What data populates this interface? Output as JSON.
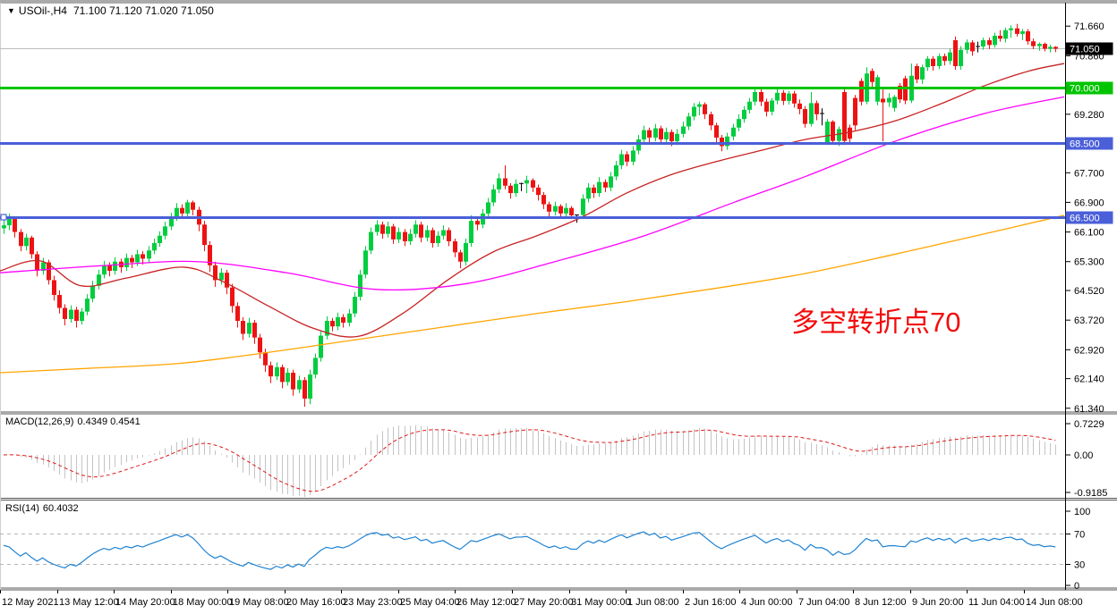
{
  "window": {
    "collapse_icon": "▼",
    "title_symbol": "USOil-,H4",
    "ohlc_values": "71.100 71.120 71.020 71.050"
  },
  "annotation": {
    "text": "多空转折点70",
    "color": "#F20C0C"
  },
  "price_axis": {
    "current_label": {
      "text": "71.050",
      "bg": "#000000",
      "fg": "#FFFFFF"
    },
    "ticks": [
      71.66,
      70.86,
      69.28,
      67.7,
      66.9,
      66.1,
      65.3,
      64.52,
      63.72,
      62.92,
      62.14,
      61.34
    ]
  },
  "hlines": [
    {
      "price": 70.0,
      "label": "70.000",
      "color": "#00C400",
      "width": 3,
      "handle": false
    },
    {
      "price": 68.5,
      "label": "68.500",
      "color": "#4A5FD8",
      "width": 3,
      "handle": false
    },
    {
      "price": 66.5,
      "label": "66.500",
      "color": "#4A5FD8",
      "width": 3,
      "handle": true
    }
  ],
  "current_price_line": {
    "price": 71.05,
    "color": "#BDBDBD"
  },
  "chart_data": {
    "type": "candlestick",
    "symbol": "USOil",
    "timeframe": "H4",
    "bull_color": "#00CD3F",
    "bear_color": "#EE1212",
    "doji_color": "#000000",
    "ylim": [
      61.17,
      72.4
    ],
    "grid": false,
    "ohlc": [
      [
        66.2,
        66.5,
        66.05,
        66.28
      ],
      [
        66.28,
        66.6,
        66.15,
        66.45
      ],
      [
        66.45,
        66.52,
        65.95,
        66.1
      ],
      [
        66.1,
        66.18,
        65.58,
        65.72
      ],
      [
        65.72,
        66.05,
        65.6,
        65.95
      ],
      [
        65.95,
        66.0,
        65.38,
        65.5
      ],
      [
        65.5,
        65.58,
        64.9,
        65.05
      ],
      [
        65.05,
        65.4,
        64.95,
        65.28
      ],
      [
        65.28,
        65.35,
        64.68,
        64.8
      ],
      [
        64.8,
        64.92,
        64.25,
        64.4
      ],
      [
        64.4,
        64.52,
        63.9,
        64.05
      ],
      [
        64.05,
        64.15,
        63.58,
        63.75
      ],
      [
        63.75,
        64.12,
        63.65,
        64.0
      ],
      [
        64.0,
        64.08,
        63.52,
        63.7
      ],
      [
        63.7,
        64.05,
        63.6,
        63.95
      ],
      [
        63.95,
        64.42,
        63.85,
        64.3
      ],
      [
        64.3,
        64.78,
        64.2,
        64.65
      ],
      [
        64.65,
        65.08,
        64.55,
        64.95
      ],
      [
        64.95,
        65.32,
        64.85,
        65.2
      ],
      [
        65.2,
        65.28,
        64.9,
        65.05
      ],
      [
        65.05,
        65.42,
        64.95,
        65.3
      ],
      [
        65.3,
        65.38,
        65.0,
        65.15
      ],
      [
        65.15,
        65.52,
        65.05,
        65.4
      ],
      [
        65.4,
        65.48,
        65.12,
        65.28
      ],
      [
        65.28,
        65.62,
        65.18,
        65.5
      ],
      [
        65.5,
        65.58,
        65.22,
        65.38
      ],
      [
        65.38,
        65.72,
        65.28,
        65.6
      ],
      [
        65.6,
        65.92,
        65.5,
        65.8
      ],
      [
        65.8,
        66.12,
        65.7,
        66.0
      ],
      [
        66.0,
        66.38,
        65.9,
        66.25
      ],
      [
        66.25,
        66.62,
        66.15,
        66.5
      ],
      [
        66.5,
        66.88,
        66.4,
        66.75
      ],
      [
        66.75,
        66.85,
        66.45,
        66.6
      ],
      [
        66.6,
        66.97,
        66.5,
        66.9
      ],
      [
        66.9,
        66.95,
        66.55,
        66.7
      ],
      [
        66.7,
        66.78,
        66.12,
        66.3
      ],
      [
        66.3,
        66.4,
        65.58,
        65.75
      ],
      [
        65.75,
        65.85,
        65.02,
        65.2
      ],
      [
        65.2,
        65.3,
        64.62,
        64.8
      ],
      [
        64.8,
        65.12,
        64.68,
        65.0
      ],
      [
        65.0,
        65.08,
        64.42,
        64.6
      ],
      [
        64.6,
        64.7,
        63.92,
        64.1
      ],
      [
        64.1,
        64.2,
        63.52,
        63.7
      ],
      [
        63.7,
        63.8,
        63.18,
        63.35
      ],
      [
        63.35,
        63.78,
        63.25,
        63.65
      ],
      [
        63.65,
        63.72,
        63.08,
        63.25
      ],
      [
        63.25,
        63.35,
        62.68,
        62.85
      ],
      [
        62.85,
        62.95,
        62.32,
        62.5
      ],
      [
        62.5,
        62.6,
        62.02,
        62.2
      ],
      [
        62.2,
        62.58,
        62.1,
        62.45
      ],
      [
        62.45,
        62.52,
        61.88,
        62.05
      ],
      [
        62.05,
        62.42,
        61.95,
        62.3
      ],
      [
        62.3,
        62.38,
        61.68,
        61.85
      ],
      [
        61.85,
        62.22,
        61.75,
        62.1
      ],
      [
        62.1,
        62.18,
        61.38,
        61.6
      ],
      [
        61.6,
        62.38,
        61.45,
        62.25
      ],
      [
        62.25,
        62.82,
        62.15,
        62.7
      ],
      [
        62.7,
        63.42,
        62.6,
        63.3
      ],
      [
        63.3,
        63.82,
        63.2,
        63.7
      ],
      [
        63.7,
        63.78,
        63.42,
        63.55
      ],
      [
        63.55,
        63.92,
        63.45,
        63.8
      ],
      [
        63.8,
        63.88,
        63.52,
        63.65
      ],
      [
        63.65,
        64.02,
        63.55,
        63.9
      ],
      [
        63.9,
        64.48,
        63.8,
        64.35
      ],
      [
        64.35,
        65.08,
        64.25,
        64.95
      ],
      [
        64.95,
        65.72,
        64.85,
        65.6
      ],
      [
        65.6,
        66.22,
        65.5,
        66.1
      ],
      [
        66.1,
        66.42,
        66.0,
        66.3
      ],
      [
        66.3,
        66.38,
        65.92,
        66.05
      ],
      [
        66.05,
        66.38,
        65.95,
        66.25
      ],
      [
        66.25,
        66.32,
        65.78,
        65.9
      ],
      [
        65.9,
        66.22,
        65.8,
        66.1
      ],
      [
        66.1,
        66.18,
        65.72,
        65.85
      ],
      [
        65.85,
        66.18,
        65.75,
        66.05
      ],
      [
        66.05,
        66.42,
        65.95,
        66.3
      ],
      [
        66.3,
        66.38,
        65.82,
        65.95
      ],
      [
        65.95,
        66.28,
        65.85,
        66.15
      ],
      [
        66.15,
        66.22,
        65.68,
        65.8
      ],
      [
        65.8,
        66.12,
        65.7,
        66.0
      ],
      [
        66.0,
        66.28,
        65.9,
        66.15
      ],
      [
        66.15,
        66.22,
        65.72,
        65.85
      ],
      [
        65.85,
        65.92,
        65.42,
        65.55
      ],
      [
        65.55,
        65.62,
        65.12,
        65.3
      ],
      [
        65.3,
        65.92,
        65.2,
        65.8
      ],
      [
        65.8,
        66.55,
        65.7,
        66.4
      ],
      [
        66.4,
        66.48,
        66.15,
        66.3
      ],
      [
        66.3,
        66.72,
        66.2,
        66.6
      ],
      [
        66.6,
        67.02,
        66.5,
        66.9
      ],
      [
        66.9,
        67.38,
        66.8,
        67.25
      ],
      [
        67.25,
        67.68,
        67.15,
        67.55
      ],
      [
        67.55,
        67.9,
        67.25,
        67.35
      ],
      [
        67.35,
        67.42,
        67.0,
        67.15
      ],
      [
        67.15,
        67.52,
        67.05,
        67.4
      ],
      [
        67.4,
        67.43,
        67.2,
        67.41
      ],
      [
        67.41,
        67.62,
        67.15,
        67.5
      ],
      [
        67.5,
        67.55,
        67.18,
        67.3
      ],
      [
        67.3,
        67.38,
        66.95,
        67.1
      ],
      [
        67.1,
        67.18,
        66.72,
        66.85
      ],
      [
        66.85,
        66.92,
        66.52,
        66.65
      ],
      [
        66.65,
        66.92,
        66.55,
        66.8
      ],
      [
        66.8,
        66.85,
        66.48,
        66.6
      ],
      [
        66.6,
        66.88,
        66.52,
        66.75
      ],
      [
        66.75,
        66.8,
        66.45,
        66.55
      ],
      [
        66.55,
        66.57,
        66.35,
        66.56
      ],
      [
        66.56,
        67.12,
        66.5,
        67.0
      ],
      [
        67.0,
        67.42,
        66.9,
        67.3
      ],
      [
        67.3,
        67.38,
        67.02,
        67.15
      ],
      [
        67.15,
        67.58,
        67.05,
        67.45
      ],
      [
        67.45,
        67.52,
        67.18,
        67.3
      ],
      [
        67.3,
        67.72,
        67.2,
        67.6
      ],
      [
        67.6,
        68.02,
        67.5,
        67.9
      ],
      [
        67.9,
        68.32,
        67.8,
        68.2
      ],
      [
        68.2,
        68.28,
        67.88,
        68.0
      ],
      [
        68.0,
        68.42,
        67.9,
        68.3
      ],
      [
        68.3,
        68.72,
        68.2,
        68.6
      ],
      [
        68.6,
        68.97,
        68.5,
        68.85
      ],
      [
        68.85,
        68.92,
        68.52,
        68.65
      ],
      [
        68.65,
        69.02,
        68.55,
        68.9
      ],
      [
        68.9,
        68.97,
        68.48,
        68.6
      ],
      [
        68.6,
        68.92,
        68.5,
        68.8
      ],
      [
        68.8,
        68.87,
        68.42,
        68.55
      ],
      [
        68.55,
        68.88,
        68.45,
        68.75
      ],
      [
        68.75,
        69.08,
        68.65,
        68.95
      ],
      [
        68.95,
        69.32,
        68.85,
        69.22
      ],
      [
        69.22,
        69.58,
        69.12,
        69.48
      ],
      [
        69.48,
        69.62,
        69.25,
        69.55
      ],
      [
        69.55,
        69.6,
        69.15,
        69.28
      ],
      [
        69.28,
        69.35,
        68.85,
        68.98
      ],
      [
        68.98,
        69.05,
        68.52,
        68.65
      ],
      [
        68.65,
        68.72,
        68.28,
        68.42
      ],
      [
        68.42,
        68.78,
        68.32,
        68.68
      ],
      [
        68.68,
        69.02,
        68.58,
        68.92
      ],
      [
        68.92,
        69.28,
        68.82,
        69.15
      ],
      [
        69.15,
        69.5,
        69.05,
        69.4
      ],
      [
        69.4,
        69.72,
        69.3,
        69.62
      ],
      [
        69.62,
        70.0,
        69.52,
        69.88
      ],
      [
        69.88,
        69.96,
        69.5,
        69.62
      ],
      [
        69.62,
        69.7,
        69.22,
        69.35
      ],
      [
        69.35,
        69.72,
        69.25,
        69.65
      ],
      [
        69.65,
        69.96,
        69.55,
        69.86
      ],
      [
        69.86,
        69.93,
        69.53,
        69.64
      ],
      [
        69.64,
        69.91,
        69.54,
        69.84
      ],
      [
        69.84,
        69.91,
        69.46,
        69.57
      ],
      [
        69.57,
        69.68,
        69.28,
        69.42
      ],
      [
        69.42,
        69.5,
        68.92,
        69.02
      ],
      [
        69.02,
        69.88,
        68.95,
        69.58
      ],
      [
        69.58,
        69.65,
        69.12,
        69.28
      ],
      [
        69.28,
        69.44,
        68.98,
        69.3
      ],
      [
        68.52,
        69.15,
        68.45,
        69.08
      ],
      [
        69.08,
        69.12,
        68.48,
        68.56
      ],
      [
        68.56,
        68.95,
        68.42,
        68.88
      ],
      [
        69.88,
        69.96,
        68.45,
        68.56
      ],
      [
        68.92,
        69.0,
        68.5,
        68.62
      ],
      [
        69.72,
        69.8,
        68.85,
        68.98
      ],
      [
        70.18,
        70.25,
        69.52,
        69.62
      ],
      [
        69.62,
        70.55,
        69.55,
        70.38
      ],
      [
        70.45,
        70.52,
        70.02,
        70.15
      ],
      [
        69.62,
        70.35,
        69.52,
        70.28
      ],
      [
        69.7,
        69.95,
        68.55,
        69.6
      ],
      [
        69.6,
        69.85,
        69.48,
        69.72
      ],
      [
        69.45,
        69.8,
        69.35,
        69.75
      ],
      [
        70.05,
        70.12,
        69.58,
        69.68
      ],
      [
        70.25,
        70.32,
        69.55,
        69.65
      ],
      [
        69.65,
        70.65,
        69.58,
        70.32
      ],
      [
        70.58,
        70.65,
        70.12,
        70.22
      ],
      [
        70.22,
        70.62,
        70.1,
        70.55
      ],
      [
        70.55,
        70.85,
        70.45,
        70.78
      ],
      [
        70.78,
        70.85,
        70.46,
        70.58
      ],
      [
        70.58,
        70.92,
        70.5,
        70.85
      ],
      [
        70.85,
        70.92,
        70.6,
        70.72
      ],
      [
        70.72,
        71.05,
        70.62,
        70.95
      ],
      [
        71.28,
        71.38,
        70.48,
        70.58
      ],
      [
        70.58,
        71.12,
        70.48,
        71.02
      ],
      [
        71.02,
        71.3,
        70.92,
        71.22
      ],
      [
        71.22,
        71.28,
        70.86,
        70.98
      ],
      [
        71.1,
        71.24,
        70.95,
        71.11
      ],
      [
        71.11,
        71.35,
        71.02,
        71.28
      ],
      [
        71.28,
        71.35,
        71.04,
        71.15
      ],
      [
        71.15,
        71.48,
        71.08,
        71.4
      ],
      [
        71.4,
        71.55,
        71.24,
        71.32
      ],
      [
        71.32,
        71.62,
        71.22,
        71.55
      ],
      [
        71.55,
        71.68,
        71.35,
        71.6
      ],
      [
        71.6,
        71.72,
        71.38,
        71.45
      ],
      [
        71.45,
        71.58,
        71.28,
        71.52
      ],
      [
        71.52,
        71.58,
        71.16,
        71.25
      ],
      [
        71.25,
        71.32,
        71.04,
        71.12
      ],
      [
        71.12,
        71.22,
        71.0,
        71.18
      ],
      [
        71.18,
        71.22,
        70.98,
        71.05
      ],
      [
        71.05,
        71.16,
        70.95,
        71.1
      ],
      [
        71.1,
        71.12,
        70.96,
        71.05
      ]
    ],
    "x_labels": [
      "12 May 2021",
      "13 May 12:00",
      "14 May 20:00",
      "18 May 00:00",
      "19 May 08:00",
      "20 May 16:00",
      "23 May 23:00",
      "25 May 04:00",
      "26 May 12:00",
      "27 May 20:00",
      "31 May 00:00",
      "1 Jun 08:00",
      "2 Jun 16:00",
      "4 Jun 00:00",
      "7 Jun 04:00",
      "8 Jun 12:00",
      "9 Jun 20:00",
      "11 Jun 04:00",
      "14 Jun 08:00"
    ],
    "moving_averages": [
      {
        "name": "ma-fast-red",
        "color": "#C82323",
        "points": [
          [
            0,
            65.05
          ],
          [
            45,
            65.32
          ],
          [
            90,
            64.65
          ],
          [
            140,
            64.85
          ],
          [
            205,
            65.15
          ],
          [
            250,
            64.75
          ],
          [
            300,
            64.1
          ],
          [
            350,
            63.5
          ],
          [
            400,
            63.28
          ],
          [
            450,
            63.9
          ],
          [
            500,
            64.8
          ],
          [
            550,
            65.55
          ],
          [
            600,
            66.0
          ],
          [
            650,
            66.5
          ],
          [
            700,
            67.15
          ],
          [
            750,
            67.65
          ],
          [
            800,
            68.0
          ],
          [
            850,
            68.3
          ],
          [
            900,
            68.6
          ],
          [
            950,
            68.8
          ],
          [
            1000,
            69.1
          ],
          [
            1050,
            69.55
          ],
          [
            1100,
            70.05
          ],
          [
            1150,
            70.45
          ],
          [
            1189,
            70.65
          ]
        ]
      },
      {
        "name": "ma-mid-magenta",
        "color": "#FF00FF",
        "points": [
          [
            0,
            65.0
          ],
          [
            120,
            65.2
          ],
          [
            220,
            65.3
          ],
          [
            320,
            65.0
          ],
          [
            420,
            64.55
          ],
          [
            520,
            64.7
          ],
          [
            620,
            65.3
          ],
          [
            720,
            66.0
          ],
          [
            820,
            66.9
          ],
          [
            900,
            67.6
          ],
          [
            1000,
            68.55
          ],
          [
            1100,
            69.3
          ],
          [
            1189,
            69.75
          ]
        ]
      },
      {
        "name": "ma-slow-orange",
        "color": "#FFA500",
        "points": [
          [
            0,
            62.3
          ],
          [
            100,
            62.42
          ],
          [
            200,
            62.55
          ],
          [
            300,
            62.85
          ],
          [
            400,
            63.2
          ],
          [
            500,
            63.55
          ],
          [
            600,
            63.9
          ],
          [
            700,
            64.22
          ],
          [
            800,
            64.58
          ],
          [
            900,
            64.98
          ],
          [
            1000,
            65.5
          ],
          [
            1100,
            66.05
          ],
          [
            1189,
            66.55
          ]
        ]
      }
    ],
    "macd": {
      "name": "MACD(12,26,9)",
      "values": "0.4349 0.4541",
      "fast": 12,
      "slow": 26,
      "signal": 9,
      "ticks": [
        "0.7229",
        "0.00",
        "-0.9185"
      ],
      "hist_color": "#C4C4C4",
      "signal_color": "#E01818"
    },
    "rsi": {
      "name": "RSI(14)",
      "value": "60.4032",
      "period": 14,
      "ticks": [
        100,
        70,
        30,
        0
      ],
      "levels": [
        70,
        30
      ],
      "color": "#1E82D2"
    }
  }
}
